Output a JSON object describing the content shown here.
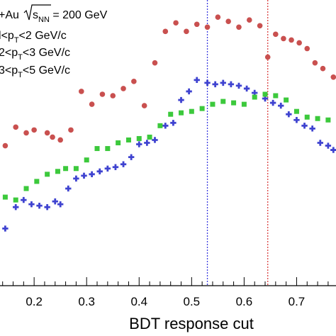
{
  "chart_data": {
    "type": "scatter",
    "xlabel": "BDT response cut",
    "xlim": [
      0.135,
      0.775
    ],
    "ylim": [
      0,
      100
    ],
    "x_ticks": [
      "0.2",
      "0.3",
      "0.4",
      "0.5",
      "0.6",
      "0.7"
    ],
    "x_tick_values": [
      0.2,
      0.3,
      0.4,
      0.5,
      0.6,
      0.7
    ],
    "legend_text": {
      "system_prefix": "+Au",
      "system_sqrt": "s",
      "system_sub": "NN",
      "system_value": " = 200 GeV",
      "bin1_lo": "l",
      "bin2_lo": "2",
      "bin3_lo": "3",
      "p": "p",
      "T": "T",
      "bin1_hi": "<2 GeV/c",
      "bin2_hi": "<3 GeV/c",
      "bin3_hi": "<5 GeV/c",
      "lt": "<"
    },
    "vlines": [
      {
        "x": 0.53,
        "color": "#3a3adf"
      },
      {
        "x": 0.645,
        "color": "#d94040"
      }
    ],
    "series": [
      {
        "color": "#c9504f",
        "marker": "circle",
        "points": [
          [
            0.145,
            49
          ],
          [
            0.165,
            55.5
          ],
          [
            0.185,
            53.5
          ],
          [
            0.2,
            54.5
          ],
          [
            0.225,
            53.5
          ],
          [
            0.235,
            52
          ],
          [
            0.25,
            51
          ],
          [
            0.27,
            54.5
          ],
          [
            0.29,
            68
          ],
          [
            0.31,
            63.5
          ],
          [
            0.33,
            67
          ],
          [
            0.35,
            66.5
          ],
          [
            0.37,
            69
          ],
          [
            0.39,
            71.5
          ],
          [
            0.41,
            63
          ],
          [
            0.43,
            78
          ],
          [
            0.45,
            89
          ],
          [
            0.47,
            92
          ],
          [
            0.49,
            89
          ],
          [
            0.51,
            91.5
          ],
          [
            0.53,
            90.5
          ],
          [
            0.55,
            94
          ],
          [
            0.57,
            92.5
          ],
          [
            0.59,
            90.5
          ],
          [
            0.61,
            93
          ],
          [
            0.63,
            91
          ],
          [
            0.645,
            80
          ],
          [
            0.66,
            88
          ],
          [
            0.675,
            86.5
          ],
          [
            0.69,
            86
          ],
          [
            0.705,
            85
          ],
          [
            0.72,
            83
          ],
          [
            0.735,
            78
          ],
          [
            0.75,
            76
          ],
          [
            0.77,
            73
          ]
        ]
      },
      {
        "color": "#3f43d0",
        "marker": "cross",
        "points": [
          [
            0.145,
            20
          ],
          [
            0.165,
            27.5
          ],
          [
            0.18,
            30
          ],
          [
            0.195,
            28.5
          ],
          [
            0.21,
            28
          ],
          [
            0.225,
            27.5
          ],
          [
            0.24,
            29.5
          ],
          [
            0.25,
            28.5
          ],
          [
            0.265,
            34
          ],
          [
            0.28,
            37.5
          ],
          [
            0.295,
            38.5
          ],
          [
            0.31,
            39
          ],
          [
            0.325,
            40
          ],
          [
            0.34,
            41
          ],
          [
            0.355,
            41.5
          ],
          [
            0.37,
            42.5
          ],
          [
            0.385,
            45
          ],
          [
            0.4,
            49.5
          ],
          [
            0.415,
            50
          ],
          [
            0.43,
            51
          ],
          [
            0.45,
            56
          ],
          [
            0.465,
            57
          ],
          [
            0.48,
            65
          ],
          [
            0.495,
            68
          ],
          [
            0.51,
            72
          ],
          [
            0.53,
            71
          ],
          [
            0.545,
            70.5
          ],
          [
            0.56,
            71
          ],
          [
            0.575,
            70.5
          ],
          [
            0.59,
            70
          ],
          [
            0.605,
            69
          ],
          [
            0.62,
            67.5
          ],
          [
            0.64,
            65.5
          ],
          [
            0.655,
            64
          ],
          [
            0.67,
            63
          ],
          [
            0.685,
            60
          ],
          [
            0.7,
            58
          ],
          [
            0.715,
            56
          ],
          [
            0.73,
            55
          ],
          [
            0.745,
            50
          ],
          [
            0.76,
            49
          ],
          [
            0.77,
            47.5
          ]
        ]
      },
      {
        "color": "#3cc93c",
        "marker": "square",
        "points": [
          [
            0.145,
            31
          ],
          [
            0.165,
            30
          ],
          [
            0.185,
            34
          ],
          [
            0.205,
            36.5
          ],
          [
            0.225,
            39
          ],
          [
            0.245,
            40
          ],
          [
            0.26,
            41
          ],
          [
            0.28,
            41
          ],
          [
            0.3,
            44
          ],
          [
            0.32,
            48
          ],
          [
            0.34,
            48
          ],
          [
            0.36,
            50
          ],
          [
            0.38,
            51
          ],
          [
            0.4,
            51.5
          ],
          [
            0.42,
            52
          ],
          [
            0.44,
            56
          ],
          [
            0.46,
            60
          ],
          [
            0.48,
            60.5
          ],
          [
            0.5,
            61
          ],
          [
            0.52,
            62
          ],
          [
            0.54,
            63.5
          ],
          [
            0.56,
            64.5
          ],
          [
            0.58,
            64
          ],
          [
            0.6,
            63.5
          ],
          [
            0.62,
            66
          ],
          [
            0.64,
            67
          ],
          [
            0.66,
            66.5
          ],
          [
            0.68,
            65
          ],
          [
            0.7,
            61
          ],
          [
            0.72,
            59
          ],
          [
            0.74,
            58.5
          ],
          [
            0.76,
            58
          ]
        ]
      }
    ]
  }
}
